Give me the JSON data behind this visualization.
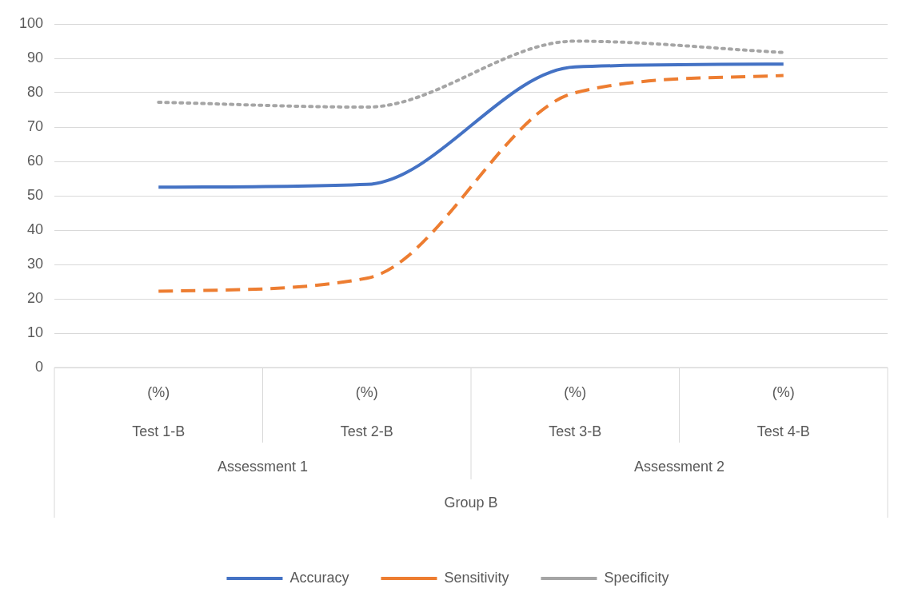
{
  "chart_data": {
    "type": "line",
    "xlabel": "Group B",
    "categories": [
      "Test 1-B",
      "Test 2-B",
      "Test 3-B",
      "Test 4-B"
    ],
    "annotations": [
      "(%)",
      "(%)",
      "(%)",
      "(%)",
      "Assessment 1",
      "Assessment 2"
    ],
    "series": [
      {
        "name": "Accuracy",
        "color": "#4472c4",
        "line_style": "solid",
        "values": [
          52.5,
          53.3,
          87.5,
          88.3
        ]
      },
      {
        "name": "Sensitivity",
        "color": "#ed7d31",
        "line_style": "dashed",
        "values": [
          22.2,
          26,
          80,
          85
        ]
      },
      {
        "name": "Specificity",
        "color": "#a5a5a5",
        "line_style": "dotted",
        "values": [
          77.2,
          75.8,
          95,
          91.7
        ]
      }
    ],
    "ylim": [
      0,
      100
    ],
    "yticks": [
      0,
      10,
      20,
      30,
      40,
      50,
      60,
      70,
      80,
      90,
      100
    ],
    "grid": "y",
    "legend": "bottom",
    "marker": "none"
  }
}
